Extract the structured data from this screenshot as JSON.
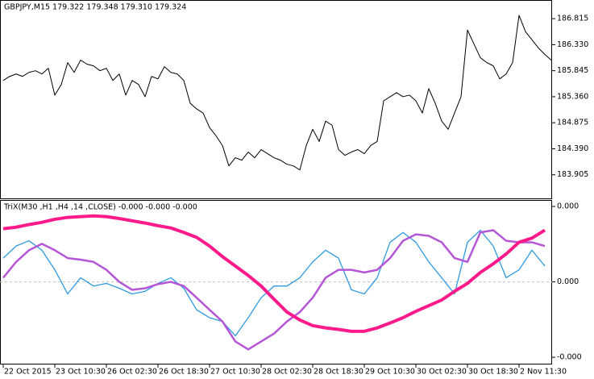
{
  "chart_data": [
    {
      "type": "line",
      "title": "GBPJPY,M15  179.322 179.348 179.310 179.324",
      "xlim": [
        -0.5,
        85.125
      ],
      "ylim": [
        183.465,
        187.148
      ],
      "yticks": [
        186.815,
        {
          "value": 186.33,
          "label": "186.330"
        },
        185.845,
        {
          "value": 185.36,
          "label": "185.360"
        },
        184.875,
        {
          "value": 184.39,
          "label": "184.390"
        },
        183.905
      ],
      "series": [
        {
          "color": "#000000",
          "line_width": 1,
          "values": [
            185.663,
            185.739,
            185.784,
            185.739,
            185.814,
            185.845,
            185.784,
            185.89,
            185.39,
            185.587,
            185.996,
            185.814,
            186.042,
            185.966,
            185.936,
            185.845,
            185.89,
            185.663,
            185.784,
            185.39,
            185.663,
            185.587,
            185.36,
            185.739,
            185.693,
            185.921,
            185.814,
            185.784,
            185.663,
            185.238,
            185.132,
            185.056,
            184.784,
            184.632,
            184.45,
            184.071,
            184.223,
            184.177,
            184.329,
            184.223,
            184.374,
            184.298,
            184.223,
            184.177,
            184.101,
            184.071,
            183.995,
            184.45,
            184.753,
            184.526,
            184.905,
            184.829,
            184.374,
            184.268,
            184.329,
            184.374,
            184.298,
            184.45,
            184.526,
            185.284,
            185.36,
            185.435,
            185.36,
            185.39,
            185.284,
            185.056,
            185.511,
            185.238,
            184.905,
            184.753,
            185.056,
            185.36,
            186.603,
            186.345,
            186.087,
            185.996,
            185.936,
            185.693,
            185.784,
            185.996,
            186.876,
            186.572,
            186.421,
            186.269,
            186.148,
            186.042
          ]
        }
      ]
    },
    {
      "type": "line",
      "title": "TriX(M30 ,H1 ,H4 ,14 ,CLOSE) -0.000 -0.000 -0.000",
      "xlim": [
        -0.25,
        42.5625
      ],
      "ylim": [
        -0.000219,
        0.000215
      ],
      "yticks": [
        {
          "value": 0.0002,
          "label": "0.000"
        },
        {
          "value": 0,
          "label": "0.000"
        },
        {
          "value": -0.0002,
          "label": "-0.000"
        }
      ],
      "levels": [
        0
      ],
      "xticks": [
        {
          "value": 0,
          "label": "22 Oct 2015"
        },
        {
          "value": 4,
          "label": "23 Oct 10:30"
        },
        {
          "value": 8,
          "label": "26 Oct 02:30"
        },
        {
          "value": 12,
          "label": "26 Oct 18:30"
        },
        {
          "value": 16,
          "label": "27 Oct 10:30"
        },
        {
          "value": 20,
          "label": "28 Oct 02:30"
        },
        {
          "value": 24,
          "label": "28 Oct 18:30"
        },
        {
          "value": 28,
          "label": "29 Oct 10:30"
        },
        {
          "value": 32,
          "label": "30 Oct 02:30"
        },
        {
          "value": 36,
          "label": "30 Oct 18:30"
        },
        {
          "value": 40,
          "label": "2 Nov 11:30"
        }
      ],
      "series": [
        {
          "color": "#2e9be0",
          "line_width": 1.3,
          "values": [
            6.3e-05,
            9.5e-05,
            0.000109,
            8.4e-05,
            3.2e-05,
            -3.2e-05,
            1.1e-05,
            -1.1e-05,
            -4e-06,
            -1.7e-05,
            -3.2e-05,
            -2.5e-05,
            -4e-06,
            1.1e-05,
            -1.7e-05,
            -7.4e-05,
            -9.5e-05,
            -0.000105,
            -0.000143,
            -9.5e-05,
            -4.2e-05,
            -1.1e-05,
            -1.1e-05,
            1.1e-05,
            5.3e-05,
            8.4e-05,
            6.3e-05,
            -2.1e-05,
            -3.2e-05,
            1.1e-05,
            0.000105,
            0.000131,
            0.000105,
            5.3e-05,
            1.1e-05,
            -3.2e-05,
            0.000105,
            0.000137,
            9.5e-05,
            1.1e-05,
            3.2e-05,
            8.4e-05,
            4.2e-05
          ]
        },
        {
          "color": "#b456d6",
          "line_width": 2.5,
          "values": [
            1.1e-05,
            5.3e-05,
            8.4e-05,
            0.000101,
            8.4e-05,
            6.3e-05,
            5.9e-05,
            5.3e-05,
            3.2e-05,
            0,
            -2.1e-05,
            -1.7e-05,
            -6e-06,
            0,
            -1.1e-05,
            -4.2e-05,
            -7.4e-05,
            -0.000105,
            -0.000158,
            -0.000179,
            -0.000158,
            -0.000137,
            -0.000105,
            -8e-05,
            -4.2e-05,
            1.1e-05,
            3.2e-05,
            3.2e-05,
            2.5e-05,
            3.2e-05,
            6.3e-05,
            0.000109,
            0.000126,
            0.000122,
            0.000105,
            6.3e-05,
            5.3e-05,
            0.000131,
            0.000137,
            0.000109,
            0.000105,
            0.000105,
            9.5e-05
          ]
        },
        {
          "color": "#ff1a8c",
          "line_width": 4,
          "values": [
            0.000141,
            0.000145,
            0.000152,
            0.000158,
            0.000166,
            0.000171,
            0.000173,
            0.000175,
            0.000173,
            0.000168,
            0.000162,
            0.000156,
            0.000149,
            0.000143,
            0.000131,
            0.000118,
            9.5e-05,
            6.7e-05,
            4.2e-05,
            1.7e-05,
            -1.1e-05,
            -4.6e-05,
            -8e-05,
            -0.000101,
            -0.000116,
            -0.000122,
            -0.000126,
            -0.000131,
            -0.000131,
            -0.000122,
            -0.000109,
            -9.5e-05,
            -7.8e-05,
            -6.3e-05,
            -4.8e-05,
            -2.5e-05,
            -4e-06,
            2.5e-05,
            4.8e-05,
            7.4e-05,
            0.000105,
            0.000116,
            0.000137
          ]
        }
      ]
    }
  ]
}
